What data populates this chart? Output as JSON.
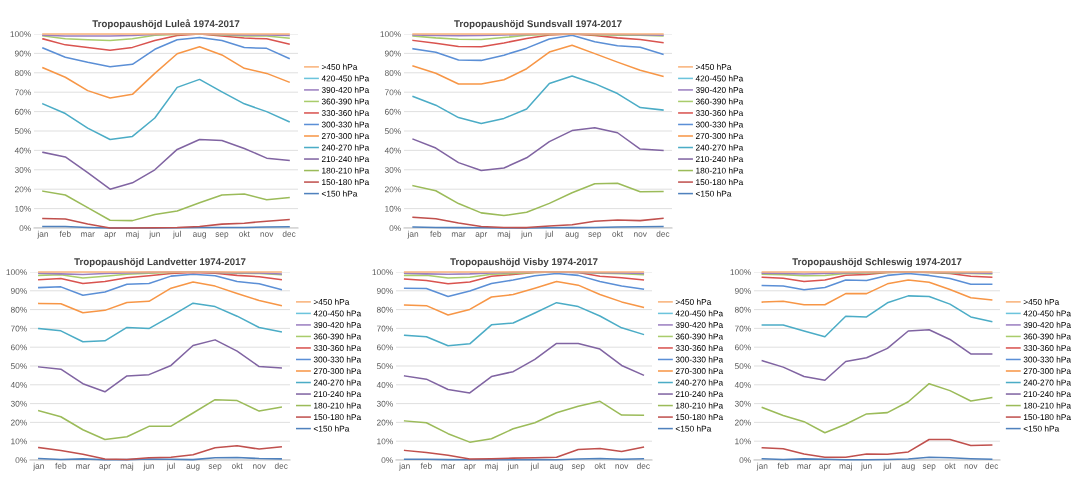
{
  "chart_data": [
    {
      "type": "line",
      "title": "Tropopaushöjd Luleå 1974-2017",
      "categories": [
        "jan",
        "feb",
        "mar",
        "apr",
        "maj",
        "jun",
        "jul",
        "aug",
        "sep",
        "okt",
        "nov",
        "dec"
      ],
      "ylim": [
        0,
        100
      ],
      "yticks": [
        {
          "value": 0,
          "label": "0%"
        },
        {
          "value": 10,
          "label": "10%"
        },
        {
          "value": 20,
          "label": "20%"
        },
        {
          "value": 30,
          "label": "30%"
        },
        {
          "value": 40,
          "label": "40%"
        },
        {
          "value": 50,
          "label": "50%"
        },
        {
          "value": 60,
          "label": "60%"
        },
        {
          "value": 70,
          "label": "70%"
        },
        {
          "value": 80,
          "label": "80%"
        },
        {
          "value": 90,
          "label": "90%"
        },
        {
          "value": 100,
          "label": "100%"
        }
      ],
      "grid": "y",
      "legend": "right",
      "marker": "none",
      "line_style": "solid",
      "series": [
        {
          "name": ">450 hPa",
          "color": "#f9b27a",
          "values": [
            100,
            100,
            100,
            100,
            100,
            100,
            100,
            100,
            100,
            100,
            100,
            100
          ]
        },
        {
          "name": "420-450 hPa",
          "color": "#6cc4dc",
          "values": [
            null,
            null,
            null,
            null,
            null,
            null,
            null,
            null,
            null,
            null,
            null,
            null
          ]
        },
        {
          "name": "390-420 hPa",
          "color": "#9b7fc0",
          "values": [
            99.3,
            99,
            99,
            99,
            99.2,
            99.8,
            100,
            100,
            99.8,
            99.5,
            99.5,
            99.3
          ]
        },
        {
          "name": "360-390 hPa",
          "color": "#a9cc6b",
          "values": [
            99,
            97.5,
            97,
            96.7,
            97.6,
            99.3,
            99.8,
            100,
            99.5,
            99,
            99,
            97.8
          ]
        },
        {
          "name": "330-360 hPa",
          "color": "#d9534f",
          "values": [
            97.5,
            94.4,
            93.1,
            91.6,
            93.1,
            96.7,
            99.2,
            100,
            99,
            97.9,
            97.5,
            94.8
          ]
        },
        {
          "name": "300-330 hPa",
          "color": "#5b8fd6",
          "values": [
            92.8,
            88,
            85.4,
            83.1,
            84.4,
            92.1,
            97,
            98.2,
            96.7,
            93,
            92.6,
            87.4
          ]
        },
        {
          "name": "270-300 hPa",
          "color": "#f79646",
          "values": [
            82.6,
            77.7,
            70.8,
            67,
            68.9,
            79.7,
            89.8,
            93.4,
            89.2,
            82.3,
            79.7,
            75.2
          ]
        },
        {
          "name": "240-270 hPa",
          "color": "#4bacc6",
          "values": [
            64,
            59,
            51.5,
            45.6,
            47.2,
            56.7,
            72.5,
            76.6,
            70.2,
            64,
            60,
            54.8
          ]
        },
        {
          "name": "210-240 hPa",
          "color": "#8064a2",
          "values": [
            39,
            36.6,
            28.5,
            20,
            23.3,
            30,
            40.5,
            45.6,
            45.1,
            41,
            36,
            34.8
          ]
        },
        {
          "name": "180-210 hPa",
          "color": "#9bbb59",
          "values": [
            19,
            17,
            10.5,
            4,
            3.8,
            7,
            8.8,
            13,
            17,
            17.5,
            14.6,
            15.7
          ]
        },
        {
          "name": "150-180 hPa",
          "color": "#c0504d",
          "values": [
            4.9,
            4.6,
            2,
            0,
            0,
            0.1,
            0.3,
            0.8,
            2,
            2.5,
            3.5,
            4.3
          ]
        },
        {
          "name": "<150 hPa",
          "color": "#4f81bd",
          "values": [
            0.8,
            0.8,
            0.3,
            0,
            0,
            0,
            0.1,
            0.3,
            0.3,
            0.3,
            0.5,
            0.6
          ]
        }
      ]
    },
    {
      "type": "line",
      "title": "Tropopaushöjd Sundsvall 1974-2017",
      "categories": [
        "jan",
        "feb",
        "mar",
        "apr",
        "maj",
        "jun",
        "jul",
        "aug",
        "sep",
        "okt",
        "nov",
        "dec"
      ],
      "ylim": [
        0,
        100
      ],
      "yticks": [
        {
          "value": 0,
          "label": "0%"
        },
        {
          "value": 10,
          "label": "10%"
        },
        {
          "value": 20,
          "label": "20%"
        },
        {
          "value": 30,
          "label": "30%"
        },
        {
          "value": 40,
          "label": "40%"
        },
        {
          "value": 50,
          "label": "50%"
        },
        {
          "value": 60,
          "label": "60%"
        },
        {
          "value": 70,
          "label": "70%"
        },
        {
          "value": 80,
          "label": "80%"
        },
        {
          "value": 90,
          "label": "90%"
        },
        {
          "value": 100,
          "label": "100%"
        }
      ],
      "grid": "y",
      "legend": "right",
      "marker": "none",
      "line_style": "solid",
      "series": [
        {
          "name": ">450 hPa",
          "color": "#f9b27a",
          "values": [
            100,
            100,
            100,
            100,
            100,
            100,
            100,
            100,
            100,
            100,
            100,
            100
          ]
        },
        {
          "name": "420-450 hPa",
          "color": "#6cc4dc",
          "values": [
            null,
            null,
            null,
            null,
            null,
            null,
            null,
            null,
            null,
            null,
            null,
            null
          ]
        },
        {
          "name": "390-420 hPa",
          "color": "#9b7fc0",
          "values": [
            99.5,
            99.2,
            99.1,
            99.2,
            99.5,
            99.8,
            100,
            100,
            99.9,
            99.7,
            99.6,
            99.4
          ]
        },
        {
          "name": "360-390 hPa",
          "color": "#a9cc6b",
          "values": [
            99,
            98,
            97.3,
            97.2,
            98.2,
            99.3,
            99.8,
            100,
            99.6,
            99.4,
            99.3,
            99
          ]
        },
        {
          "name": "330-360 hPa",
          "color": "#d9534f",
          "values": [
            96.7,
            95.2,
            93.6,
            93.4,
            95.4,
            97.7,
            99.5,
            100,
            99.2,
            98,
            97.2,
            95.5
          ]
        },
        {
          "name": "300-330 hPa",
          "color": "#5b8fd6",
          "values": [
            92.4,
            90.6,
            86.6,
            86.4,
            89.1,
            92.7,
            97.4,
            99.3,
            96,
            93.9,
            93.2,
            89.6
          ]
        },
        {
          "name": "270-300 hPa",
          "color": "#f79646",
          "values": [
            83.5,
            79.8,
            74.2,
            74.2,
            76.4,
            82.1,
            90.7,
            94.2,
            89.9,
            85.5,
            81.3,
            78.2
          ]
        },
        {
          "name": "240-270 hPa",
          "color": "#4bacc6",
          "values": [
            67.8,
            63.3,
            56.9,
            53.9,
            56.5,
            61.3,
            74.5,
            78.3,
            74.4,
            69.3,
            62.1,
            60.8
          ]
        },
        {
          "name": "210-240 hPa",
          "color": "#8064a2",
          "values": [
            45.8,
            41.2,
            33.7,
            29.6,
            30.9,
            36.2,
            44.5,
            50.2,
            51.7,
            49.1,
            40.7,
            40
          ]
        },
        {
          "name": "180-210 hPa",
          "color": "#9bbb59",
          "values": [
            21.8,
            19.2,
            12.6,
            7.8,
            6.4,
            8.1,
            12.7,
            18.2,
            22.8,
            23.1,
            18.7,
            18.8
          ]
        },
        {
          "name": "150-180 hPa",
          "color": "#c0504d",
          "values": [
            5.5,
            4.8,
            2.6,
            0.8,
            0.3,
            0.2,
            1,
            1.7,
            3.5,
            4.1,
            3.8,
            5
          ]
        },
        {
          "name": "<150 hPa",
          "color": "#4f81bd",
          "values": [
            0.5,
            0.3,
            0.2,
            0.1,
            0,
            0,
            0.1,
            0.2,
            0.3,
            0.5,
            0.6,
            0.8
          ]
        }
      ]
    },
    {
      "type": "line",
      "title": "Tropopaushöjd Landvetter 1974-2017",
      "categories": [
        "jan",
        "feb",
        "mar",
        "apr",
        "maj",
        "jun",
        "jul",
        "aug",
        "sep",
        "okt",
        "nov",
        "dec"
      ],
      "ylim": [
        0,
        100
      ],
      "yticks": [
        {
          "value": 0,
          "label": "0%"
        },
        {
          "value": 10,
          "label": "10%"
        },
        {
          "value": 20,
          "label": "20%"
        },
        {
          "value": 30,
          "label": "30%"
        },
        {
          "value": 40,
          "label": "40%"
        },
        {
          "value": 50,
          "label": "50%"
        },
        {
          "value": 60,
          "label": "60%"
        },
        {
          "value": 70,
          "label": "70%"
        },
        {
          "value": 80,
          "label": "80%"
        },
        {
          "value": 90,
          "label": "90%"
        },
        {
          "value": 100,
          "label": "100%"
        }
      ],
      "grid": "y",
      "legend": "right",
      "marker": "none",
      "line_style": "solid",
      "series": [
        {
          "name": ">450 hPa",
          "color": "#f9b27a",
          "values": [
            100,
            100,
            100,
            100,
            100,
            100,
            100,
            100,
            100,
            100,
            100,
            100
          ]
        },
        {
          "name": "420-450 hPa",
          "color": "#6cc4dc",
          "values": [
            null,
            null,
            null,
            null,
            null,
            null,
            null,
            null,
            null,
            null,
            null,
            null
          ]
        },
        {
          "name": "390-420 hPa",
          "color": "#9b7fc0",
          "values": [
            99.3,
            99,
            98.7,
            99.2,
            99.5,
            99.8,
            100,
            100,
            99.8,
            99.6,
            99.5,
            98.9
          ]
        },
        {
          "name": "360-390 hPa",
          "color": "#a9cc6b",
          "values": [
            98.2,
            98.5,
            96.8,
            97.7,
            98.8,
            99.3,
            99.7,
            100,
            99.7,
            99.4,
            99.2,
            98.6
          ]
        },
        {
          "name": "330-360 hPa",
          "color": "#d9534f",
          "values": [
            95.9,
            96.5,
            93.9,
            95,
            97,
            98,
            99.2,
            99.8,
            99.3,
            98.2,
            97.5,
            95.9
          ]
        },
        {
          "name": "300-330 hPa",
          "color": "#5b8fd6",
          "values": [
            91.7,
            92.1,
            87.6,
            89.4,
            93.5,
            93.9,
            97.8,
            98.8,
            98,
            95,
            93.7,
            90.7
          ]
        },
        {
          "name": "270-300 hPa",
          "color": "#f79646",
          "values": [
            83.3,
            83.1,
            78.3,
            79.6,
            83.8,
            84.4,
            91.4,
            94.7,
            92.5,
            88.6,
            84.8,
            82.1
          ]
        },
        {
          "name": "240-270 hPa",
          "color": "#4bacc6",
          "values": [
            69.9,
            68.7,
            62.9,
            63.4,
            70.5,
            69.9,
            76.5,
            83.4,
            81.6,
            76.5,
            70.5,
            68.2
          ]
        },
        {
          "name": "210-240 hPa",
          "color": "#8064a2",
          "values": [
            49.5,
            48.3,
            40.6,
            36.3,
            44.7,
            45.4,
            50.3,
            60.9,
            63.9,
            57.9,
            49.7,
            49
          ]
        },
        {
          "name": "180-210 hPa",
          "color": "#9bbb59",
          "values": [
            26.2,
            23,
            16.1,
            10.9,
            12.4,
            17.9,
            18,
            25,
            32.1,
            31.6,
            26,
            28.1
          ]
        },
        {
          "name": "150-180 hPa",
          "color": "#c0504d",
          "values": [
            6.6,
            5.1,
            3,
            0.5,
            0.3,
            1.2,
            1.5,
            2.8,
            6.5,
            7.6,
            5.8,
            7
          ]
        },
        {
          "name": "<150 hPa",
          "color": "#4f81bd",
          "values": [
            0.8,
            0.3,
            0.6,
            0.1,
            0.2,
            0.5,
            0.4,
            0.2,
            1.2,
            1.3,
            0.8,
            0.6
          ]
        }
      ]
    },
    {
      "type": "line",
      "title": "Tropopaushöjd Visby 1974-2017",
      "categories": [
        "jan",
        "feb",
        "mar",
        "apr",
        "maj",
        "jun",
        "jul",
        "aug",
        "sep",
        "okt",
        "nov",
        "dec"
      ],
      "ylim": [
        0,
        100
      ],
      "yticks": [
        {
          "value": 0,
          "label": "0%"
        },
        {
          "value": 10,
          "label": "10%"
        },
        {
          "value": 20,
          "label": "20%"
        },
        {
          "value": 30,
          "label": "30%"
        },
        {
          "value": 40,
          "label": "40%"
        },
        {
          "value": 50,
          "label": "50%"
        },
        {
          "value": 60,
          "label": "60%"
        },
        {
          "value": 70,
          "label": "70%"
        },
        {
          "value": 80,
          "label": "80%"
        },
        {
          "value": 90,
          "label": "90%"
        },
        {
          "value": 100,
          "label": "100%"
        }
      ],
      "grid": "y",
      "legend": "right",
      "marker": "none",
      "line_style": "solid",
      "series": [
        {
          "name": ">450 hPa",
          "color": "#f9b27a",
          "values": [
            100,
            100,
            100,
            100,
            100,
            100,
            100,
            100,
            100,
            100,
            100,
            100
          ]
        },
        {
          "name": "420-450 hPa",
          "color": "#6cc4dc",
          "values": [
            null,
            null,
            null,
            null,
            null,
            null,
            null,
            null,
            null,
            null,
            null,
            null
          ]
        },
        {
          "name": "390-420 hPa",
          "color": "#9b7fc0",
          "values": [
            99.3,
            99,
            98.8,
            99,
            99.5,
            99.8,
            100,
            100,
            99.8,
            99.6,
            99.5,
            99.2
          ]
        },
        {
          "name": "360-390 hPa",
          "color": "#a9cc6b",
          "values": [
            98.2,
            98.3,
            96.8,
            97.2,
            98.8,
            99.2,
            99.7,
            100,
            99.7,
            99.3,
            99.1,
            98.6
          ]
        },
        {
          "name": "330-360 hPa",
          "color": "#d9534f",
          "values": [
            96.3,
            95.5,
            93.7,
            94.7,
            97.7,
            98.7,
            99.8,
            100,
            99.7,
            97.7,
            97,
            95.8
          ]
        },
        {
          "name": "300-330 hPa",
          "color": "#5b8fd6",
          "values": [
            91.4,
            91.2,
            87,
            89.9,
            93.9,
            95.7,
            98,
            99.2,
            98.2,
            94.9,
            92.5,
            90.9
          ]
        },
        {
          "name": "270-300 hPa",
          "color": "#f79646",
          "values": [
            82.4,
            82.1,
            77.1,
            80.1,
            86.7,
            88,
            91.4,
            95,
            93,
            88,
            84.1,
            81.2
          ]
        },
        {
          "name": "240-270 hPa",
          "color": "#4bacc6",
          "values": [
            66.3,
            65.6,
            60.8,
            61.8,
            71.9,
            72.9,
            78.2,
            83.7,
            81.6,
            76.6,
            70.3,
            66.8
          ]
        },
        {
          "name": "210-240 hPa",
          "color": "#8064a2",
          "values": [
            44.7,
            43,
            37.5,
            35.7,
            44.4,
            47,
            53.5,
            62,
            62,
            59,
            50.3,
            45.2
          ]
        },
        {
          "name": "180-210 hPa",
          "color": "#9bbb59",
          "values": [
            20.8,
            19.8,
            14,
            9.5,
            11.3,
            16.6,
            19.8,
            25.1,
            28.6,
            31.2,
            23.9,
            23.8
          ]
        },
        {
          "name": "150-180 hPa",
          "color": "#c0504d",
          "values": [
            5.1,
            4,
            2.5,
            0.5,
            0.7,
            1,
            1.2,
            1.5,
            5.6,
            6.1,
            4.5,
            6.8
          ]
        },
        {
          "name": "<150 hPa",
          "color": "#4f81bd",
          "values": [
            0.4,
            0.4,
            0.2,
            0.1,
            0.1,
            0.1,
            0.2,
            0.1,
            0.5,
            0.8,
            0.4,
            0.6
          ]
        }
      ]
    },
    {
      "type": "line",
      "title": "Tropopaushöjd Schleswig 1974-2017",
      "categories": [
        "jan",
        "feb",
        "mar",
        "apr",
        "maj",
        "jun",
        "jul",
        "aug",
        "sep",
        "okt",
        "nov",
        "dec"
      ],
      "ylim": [
        0,
        100
      ],
      "yticks": [
        {
          "value": 0,
          "label": "0%"
        },
        {
          "value": 10,
          "label": "10%"
        },
        {
          "value": 20,
          "label": "20%"
        },
        {
          "value": 30,
          "label": "30%"
        },
        {
          "value": 40,
          "label": "40%"
        },
        {
          "value": 50,
          "label": "50%"
        },
        {
          "value": 60,
          "label": "60%"
        },
        {
          "value": 70,
          "label": "70%"
        },
        {
          "value": 80,
          "label": "80%"
        },
        {
          "value": 90,
          "label": "90%"
        },
        {
          "value": 100,
          "label": "100%"
        }
      ],
      "grid": "y",
      "legend": "right",
      "marker": "none",
      "line_style": "solid",
      "series": [
        {
          "name": ">450 hPa",
          "color": "#f9b27a",
          "values": [
            100,
            100,
            100,
            100,
            100,
            100,
            100,
            100,
            100,
            100,
            100,
            100
          ]
        },
        {
          "name": "420-450 hPa",
          "color": "#6cc4dc",
          "values": [
            null,
            null,
            null,
            null,
            null,
            null,
            null,
            null,
            null,
            null,
            null,
            null
          ]
        },
        {
          "name": "390-420 hPa",
          "color": "#9b7fc0",
          "values": [
            99.4,
            99.2,
            98.9,
            99.2,
            99.6,
            99.8,
            100,
            100,
            99.9,
            99.7,
            99.5,
            99.3
          ]
        },
        {
          "name": "360-390 hPa",
          "color": "#a9cc6b",
          "values": [
            98.8,
            98.6,
            98,
            98.1,
            99.2,
            99.5,
            99.8,
            100,
            99.8,
            99.5,
            99.2,
            99
          ]
        },
        {
          "name": "330-360 hPa",
          "color": "#d9534f",
          "values": [
            97.2,
            96.7,
            95,
            95.8,
            98.3,
            98.7,
            99.8,
            100,
            99.7,
            99.2,
            97.7,
            97.2
          ]
        },
        {
          "name": "300-330 hPa",
          "color": "#5b8fd6",
          "values": [
            92.8,
            92.5,
            90.5,
            91.8,
            95.7,
            95.5,
            98.2,
            99.2,
            98.2,
            96.5,
            93.5,
            93.5
          ]
        },
        {
          "name": "270-300 hPa",
          "color": "#f79646",
          "values": [
            84,
            84.5,
            82.6,
            82.6,
            88.5,
            88.5,
            93.7,
            95.8,
            94.5,
            90.7,
            86.3,
            85.1
          ]
        },
        {
          "name": "240-270 hPa",
          "color": "#4bacc6",
          "values": [
            71.8,
            71.8,
            68.6,
            65.6,
            76.5,
            76.1,
            83.6,
            87.3,
            87,
            82.9,
            76.1,
            73.6
          ]
        },
        {
          "name": "210-240 hPa",
          "color": "#8064a2",
          "values": [
            52.8,
            49.4,
            44.4,
            42.4,
            52.4,
            54.4,
            59.4,
            68.6,
            69.3,
            64.1,
            56.4,
            56.4
          ]
        },
        {
          "name": "180-210 hPa",
          "color": "#9bbb59",
          "values": [
            27.9,
            23.7,
            20.4,
            14.5,
            19,
            24.5,
            25.2,
            31,
            40.6,
            36.9,
            31.4,
            33.2
          ]
        },
        {
          "name": "150-180 hPa",
          "color": "#c0504d",
          "values": [
            6.5,
            6,
            3.2,
            1.5,
            1.5,
            3.2,
            3,
            4.3,
            10.9,
            10.9,
            7.7,
            8
          ]
        },
        {
          "name": "<150 hPa",
          "color": "#4f81bd",
          "values": [
            0.7,
            0.3,
            0.6,
            0.4,
            0.1,
            0.1,
            0.3,
            0.5,
            1.5,
            1.2,
            0.7,
            0.4
          ]
        }
      ]
    }
  ]
}
